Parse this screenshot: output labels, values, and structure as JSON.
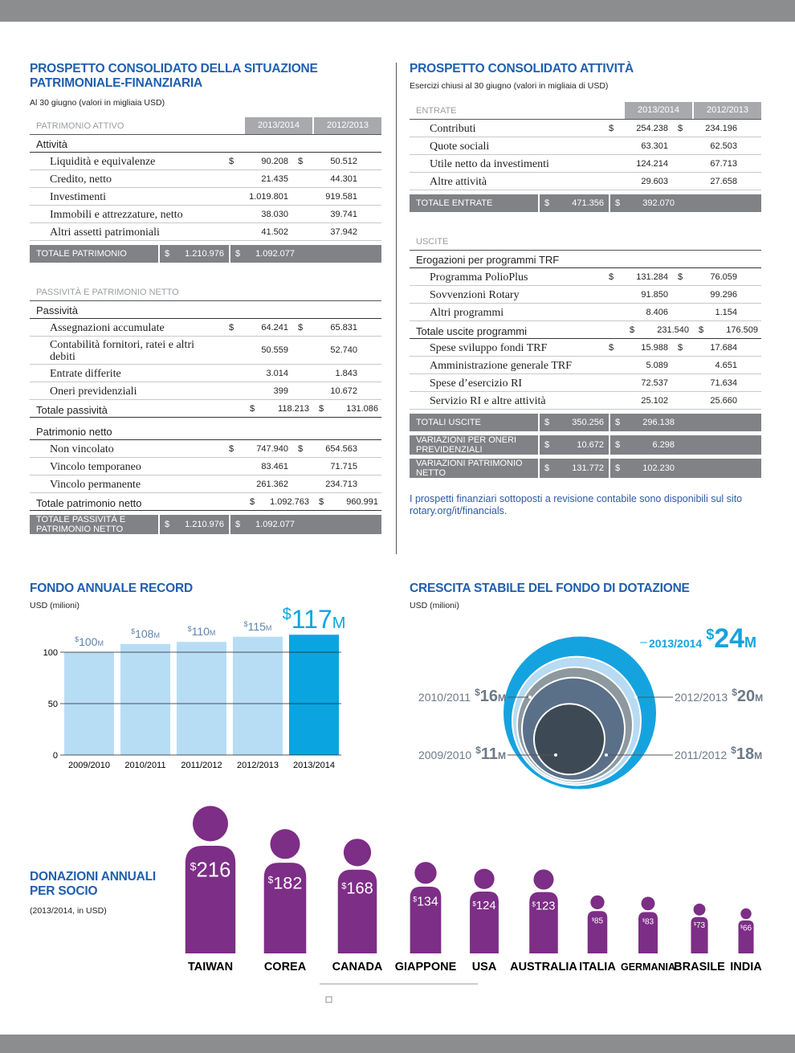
{
  "balance_sheet": {
    "title": "PROSPETTO CONSOLIDATO DELLA SITUAZIONE PATRIMONIALE-FINANZIARIA",
    "subtitle": "Al 30 giugno (valori in migliaia USD)",
    "columns": [
      "2013/2014",
      "2012/2013"
    ],
    "parts": [
      {
        "header": "PATRIMONIO ATTIVO",
        "sections": [
          {
            "heading": "Attività",
            "items": [
              {
                "label": "Liquidità e equivalenze",
                "currency": "$",
                "values": [
                  "90.208",
                  "50.512"
                ]
              },
              {
                "label": "Credito, netto",
                "values": [
                  "21.435",
                  "44.301"
                ]
              },
              {
                "label": "Investimenti",
                "values": [
                  "1.019.801",
                  "919.581"
                ]
              },
              {
                "label": "Immobili e attrezzature, netto",
                "values": [
                  "38.030",
                  "39.741"
                ]
              },
              {
                "label": "Altri assetti patrimoniali",
                "values": [
                  "41.502",
                  "37.942"
                ]
              }
            ]
          }
        ],
        "bands": [
          {
            "label": "TOTALE PATRIMONIO",
            "currency": "$",
            "values": [
              "1.210.976",
              "1.092.077"
            ]
          }
        ]
      },
      {
        "header": "PASSIVITÀ E PATRIMONIO NETTO",
        "sections": [
          {
            "heading": "Passività",
            "items": [
              {
                "label": "Assegnazioni accumulate",
                "currency": "$",
                "values": [
                  "64.241",
                  "65.831"
                ]
              },
              {
                "label": "Contabilità fornitori, ratei e altri debiti",
                "values": [
                  "50.559",
                  "52.740"
                ]
              },
              {
                "label": "Entrate differite",
                "values": [
                  "3.014",
                  "1.843"
                ]
              },
              {
                "label": "Oneri previdenziali",
                "values": [
                  "399",
                  "10.672"
                ]
              }
            ],
            "total": {
              "label": "Totale passività",
              "currency": "$",
              "values": [
                "118.213",
                "131.086"
              ]
            }
          },
          {
            "heading": "Patrimonio netto",
            "items": [
              {
                "label": "Non vincolato",
                "currency": "$",
                "values": [
                  "747.940",
                  "654.563"
                ]
              },
              {
                "label": "Vincolo temporaneo",
                "values": [
                  "83.461",
                  "71.715"
                ]
              },
              {
                "label": "Vincolo permanente",
                "values": [
                  "261.362",
                  "234.713"
                ]
              }
            ],
            "total": {
              "label": "Totale patrimonio netto",
              "currency": "$",
              "values": [
                "1.092.763",
                "960.991"
              ]
            }
          }
        ],
        "bands": [
          {
            "label": "TOTALE PASSIVITÀ E PATRIMONIO NETTO",
            "currency": "$",
            "values": [
              "1.210.976",
              "1.092.077"
            ]
          }
        ]
      }
    ]
  },
  "activities": {
    "title": "PROSPETTO CONSOLIDATO ATTIVITÀ",
    "subtitle": "Esercizi chiusi al 30 giugno (valori in migliaia di USD)",
    "columns": [
      "2013/2014",
      "2012/2013"
    ],
    "parts": [
      {
        "header": "ENTRATE",
        "sections": [
          {
            "items": [
              {
                "label": "Contributi",
                "currency": "$",
                "values": [
                  "254.238",
                  "234.196"
                ]
              },
              {
                "label": "Quote sociali",
                "values": [
                  "63.301",
                  "62.503"
                ]
              },
              {
                "label": "Utile netto da investimenti",
                "values": [
                  "124.214",
                  "67.713"
                ]
              },
              {
                "label": "Altre attività",
                "values": [
                  "29.603",
                  "27.658"
                ]
              }
            ]
          }
        ],
        "bands": [
          {
            "label": "TOTALE ENTRATE",
            "currency": "$",
            "values": [
              "471.356",
              "392.070"
            ]
          }
        ]
      },
      {
        "header": "USCITE",
        "sections": [
          {
            "heading": "Erogazioni per programmi TRF",
            "items": [
              {
                "label": "Programma PolioPlus",
                "currency": "$",
                "values": [
                  "131.284",
                  "76.059"
                ]
              },
              {
                "label": "Sovvenzioni Rotary",
                "values": [
                  "91.850",
                  "99.296"
                ]
              },
              {
                "label": "Altri programmi",
                "values": [
                  "8.406",
                  "1.154"
                ]
              }
            ],
            "total": {
              "label": "Totale uscite programmi",
              "currency": "$",
              "values": [
                "231.540",
                "176.509"
              ]
            }
          },
          {
            "items": [
              {
                "label": "Spese sviluppo fondi TRF",
                "currency": "$",
                "values": [
                  "15.988",
                  "17.684"
                ]
              },
              {
                "label": "Amministrazione generale TRF",
                "values": [
                  "5.089",
                  "4.651"
                ]
              },
              {
                "label": "Spese d’esercizio RI",
                "values": [
                  "72.537",
                  "71.634"
                ]
              },
              {
                "label": "Servizio RI e altre attività",
                "values": [
                  "25.102",
                  "25.660"
                ]
              }
            ]
          }
        ],
        "bands": [
          {
            "label": "TOTALI USCITE",
            "currency": "$",
            "values": [
              "350.256",
              "296.138"
            ]
          },
          {
            "label": "VARIAZIONI PER ONERI PREVIDENZIALI",
            "currency": "$",
            "values": [
              "10.672",
              "6.298"
            ]
          },
          {
            "label": "VARIAZIONI PATRIMONIO NETTO",
            "currency": "$",
            "values": [
              "131.772",
              "102.230"
            ]
          }
        ]
      }
    ],
    "note": "I prospetti finanziari sottoposti a revisione contabile sono disponibili sul sito rotary.org/it/financials."
  },
  "chart_data": [
    {
      "type": "bar",
      "title": "FONDO ANNUALE RECORD",
      "subtitle": "USD (milioni)",
      "categories": [
        "2009/2010",
        "2010/2011",
        "2011/2012",
        "2012/2013",
        "2013/2014"
      ],
      "values": [
        100,
        108,
        110,
        115,
        117
      ],
      "value_labels": [
        "$100M",
        "$108M",
        "$110M",
        "$115M",
        "$117M"
      ],
      "colors": [
        "#b7ddf5",
        "#b7ddf5",
        "#b7ddf5",
        "#b7ddf5",
        "#0aa5e1"
      ],
      "ylim": [
        0,
        125
      ],
      "yticks": [
        0,
        50,
        100
      ],
      "grid": true
    },
    {
      "type": "nested-circles",
      "title": "CRESCITA STABILE DEL FONDO DI DOTAZIONE",
      "subtitle": "USD (milioni)",
      "categories": [
        "2009/2010",
        "2010/2011",
        "2011/2012",
        "2012/2013",
        "2013/2014"
      ],
      "values": [
        11,
        16,
        18,
        20,
        24
      ],
      "value_labels": [
        "$11M",
        "$16M",
        "$18M",
        "$20M",
        "$24M"
      ],
      "colors": [
        "#3d4a55",
        "#5a6f88",
        "#8d989f",
        "#b7dbf3",
        "#15a3df"
      ]
    },
    {
      "type": "pictogram",
      "title": "DONAZIONI ANNUALI PER SOCIO",
      "subtitle": "(2013/2014, in USD)",
      "categories": [
        "TAIWAN",
        "COREA",
        "CANADA",
        "GIAPPONE",
        "USA",
        "AUSTRALIA",
        "ITALIA",
        "GERMANIA",
        "BRASILE",
        "INDIA"
      ],
      "values": [
        216,
        182,
        168,
        134,
        124,
        123,
        85,
        83,
        73,
        66
      ],
      "value_labels": [
        "$216",
        "$182",
        "$168",
        "$134",
        "$124",
        "$123",
        "$85",
        "$83",
        "$73",
        "$66"
      ],
      "color": "#7d2e86"
    }
  ]
}
